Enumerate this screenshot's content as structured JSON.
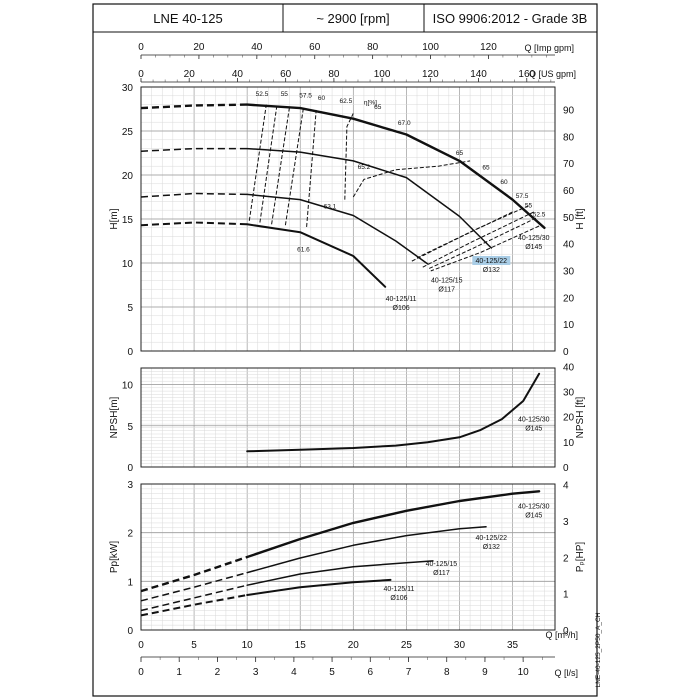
{
  "header": {
    "model": "LNE 40-125",
    "speed": "~ 2900 [rpm]",
    "standard": "ISO 9906:2012 - Grade 3B"
  },
  "footer_code": "LNE-40-125_2P50_A_CH",
  "colors": {
    "curve": "#111111",
    "grid_minor": "#d9d9d9",
    "grid_major": "#9a9a9a",
    "highlight": "#a9cde6"
  },
  "top_axes": {
    "imp": {
      "label": "Q [Imp gpm]",
      "ticks": [
        0,
        20,
        40,
        60,
        80,
        100,
        120
      ]
    },
    "us": {
      "label": "Q [US gpm]",
      "ticks": [
        0,
        20,
        40,
        60,
        80,
        100,
        120,
        140,
        160
      ]
    }
  },
  "bottom_axes": {
    "m3h": {
      "label": "Q [m³/h]",
      "ticks": [
        0,
        5,
        10,
        15,
        20,
        25,
        30,
        35
      ]
    },
    "ls": {
      "label": "Q [l/s]",
      "ticks": [
        0,
        1,
        2,
        3,
        4,
        5,
        6,
        7,
        8,
        9,
        10
      ]
    }
  },
  "chart_data": [
    {
      "type": "line",
      "panel": "head",
      "ylabel": "H[m]",
      "y2label": "H [ft]",
      "xlim": [
        0,
        39
      ],
      "ylim": [
        0,
        30
      ],
      "y_ticks": [
        0,
        5,
        10,
        15,
        20,
        25,
        30
      ],
      "y2_ticks": [
        0,
        10,
        20,
        30,
        40,
        50,
        60,
        70,
        80,
        90
      ],
      "grid": true,
      "series": [
        {
          "name": "40-125/30 Ø145",
          "width": 2.4,
          "points": [
            [
              0,
              27.6
            ],
            [
              5,
              27.9
            ],
            [
              10,
              28.0
            ],
            [
              15,
              27.6
            ],
            [
              20,
              26.4
            ],
            [
              25,
              24.6
            ],
            [
              30,
              21.6
            ],
            [
              35,
              17.2
            ],
            [
              38,
              14.0
            ]
          ],
          "dashed_until": 10
        },
        {
          "name": "40-125/22 Ø132",
          "width": 1.5,
          "points": [
            [
              0,
              22.7
            ],
            [
              5,
              23.0
            ],
            [
              10,
              23.0
            ],
            [
              15,
              22.6
            ],
            [
              20,
              21.6
            ],
            [
              25,
              19.7
            ],
            [
              30,
              15.3
            ],
            [
              33,
              11.7
            ]
          ],
          "dashed_until": 10
        },
        {
          "name": "40-125/15 Ø117",
          "width": 1.5,
          "points": [
            [
              0,
              17.5
            ],
            [
              5,
              17.9
            ],
            [
              10,
              17.8
            ],
            [
              15,
              17.2
            ],
            [
              20,
              15.4
            ],
            [
              24,
              12.5
            ],
            [
              27,
              9.9
            ]
          ],
          "dashed_until": 10
        },
        {
          "name": "40-125/11 Ø106",
          "width": 2.0,
          "points": [
            [
              0,
              14.3
            ],
            [
              5,
              14.6
            ],
            [
              10,
              14.4
            ],
            [
              15,
              13.5
            ],
            [
              20,
              10.8
            ],
            [
              23,
              7.3
            ]
          ],
          "dashed_until": 10
        }
      ],
      "efficiency_label": "η[%]",
      "efficiency": [
        {
          "label": "52.5",
          "points": [
            [
              10.2,
              14.8
            ],
            [
              11.8,
              28.0
            ]
          ],
          "label_at": [
            11.4,
            29.0
          ]
        },
        {
          "label": "55",
          "points": [
            [
              11.2,
              14.6
            ],
            [
              12.8,
              27.9
            ]
          ],
          "label_at": [
            13.5,
            29.0
          ]
        },
        {
          "label": "57.5",
          "points": [
            [
              12.3,
              14.4
            ],
            [
              14.0,
              27.8
            ]
          ],
          "label_at": [
            15.5,
            28.8
          ]
        },
        {
          "label": "60",
          "points": [
            [
              13.6,
              14.3
            ],
            [
              15.3,
              27.6
            ]
          ],
          "label_at": [
            17.0,
            28.5
          ]
        },
        {
          "label": "62.5",
          "points": [
            [
              15.6,
              14.1
            ],
            [
              16.5,
              27.4
            ]
          ],
          "label_at": [
            19.3,
            28.2
          ]
        },
        {
          "label": "65",
          "points": [
            [
              19.2,
              17.2
            ],
            [
              19.4,
              25.5
            ],
            [
              20.0,
              27.0
            ]
          ],
          "label_at": [
            22.3,
            27.5
          ]
        },
        {
          "label": "65",
          "points": [
            [
              20.0,
              17.5
            ],
            [
              21.0,
              19.5
            ],
            [
              24.0,
              20.6
            ],
            [
              28.0,
              21.0
            ],
            [
              31.0,
              21.6
            ]
          ],
          "label_at": null
        },
        {
          "label": "65",
          "points": [
            [
              35.0,
              15.8
            ],
            [
              30.0,
              12.9
            ],
            [
              25.5,
              10.2
            ]
          ],
          "label_at": null
        },
        {
          "label": "60",
          "points": [
            [
              36.5,
              16.5
            ],
            [
              31.5,
              13.8
            ],
            [
              26.0,
              10.6
            ]
          ],
          "label_at": null
        },
        {
          "label": "57.5",
          "points": [
            [
              37.0,
              15.8
            ],
            [
              31.0,
              12.3
            ],
            [
              26.5,
              9.5
            ]
          ],
          "label_at": null
        },
        {
          "label": "55",
          "points": [
            [
              37.2,
              15.1
            ],
            [
              31.5,
              11.8
            ],
            [
              27.0,
              9.3
            ]
          ],
          "label_at": null
        },
        {
          "label": "52.5",
          "points": [
            [
              37.5,
              14.2
            ],
            [
              32.0,
              11.2
            ],
            [
              27.3,
              9.1
            ]
          ],
          "label_at": null
        }
      ],
      "annotations": [
        {
          "text": "67.0",
          "at": [
            24.8,
            25.7
          ]
        },
        {
          "text": "65.2",
          "at": [
            21.0,
            20.7
          ]
        },
        {
          "text": "63.1",
          "at": [
            17.8,
            16.2
          ]
        },
        {
          "text": "61.6",
          "at": [
            15.3,
            11.3
          ]
        },
        {
          "text": "65",
          "at": [
            30.0,
            22.3
          ]
        },
        {
          "text": "65",
          "at": [
            32.5,
            20.6
          ]
        },
        {
          "text": "60",
          "at": [
            34.2,
            19.0
          ]
        },
        {
          "text": "57.5",
          "at": [
            35.9,
            17.4
          ]
        },
        {
          "text": "55",
          "at": [
            36.5,
            16.3
          ]
        },
        {
          "text": "52.5",
          "at": [
            37.5,
            15.3
          ]
        }
      ],
      "series_labels": [
        {
          "line1": "40-125/30",
          "line2": "Ø145",
          "at": [
            37.0,
            12.6
          ],
          "highlight": false
        },
        {
          "line1": "40-125/22",
          "line2": "Ø132",
          "at": [
            33.0,
            10.0
          ],
          "highlight": true
        },
        {
          "line1": "40-125/15",
          "line2": "Ø117",
          "at": [
            28.8,
            7.8
          ],
          "highlight": false
        },
        {
          "line1": "40-125/11",
          "line2": "Ø106",
          "at": [
            24.5,
            5.7
          ],
          "highlight": false
        }
      ]
    },
    {
      "type": "line",
      "panel": "npsh",
      "ylabel": "NPSH[m]",
      "y2label": "NPSH [ft]",
      "xlim": [
        0,
        39
      ],
      "ylim": [
        0,
        12
      ],
      "y_ticks": [
        0,
        5,
        10
      ],
      "y2_ticks": [
        0,
        10,
        20,
        30,
        40
      ],
      "grid": true,
      "series": [
        {
          "name": "40-125/30 Ø145",
          "width": 2.0,
          "points": [
            [
              10,
              1.9
            ],
            [
              15,
              2.1
            ],
            [
              20,
              2.3
            ],
            [
              24,
              2.6
            ],
            [
              27,
              3.0
            ],
            [
              30,
              3.6
            ],
            [
              32,
              4.5
            ],
            [
              34,
              5.8
            ],
            [
              36,
              8.0
            ],
            [
              37.5,
              11.3
            ]
          ]
        }
      ],
      "series_labels": [
        {
          "line1": "40-125/30",
          "line2": "Ø145",
          "at": [
            37.0,
            5.5
          ],
          "highlight": false
        }
      ]
    },
    {
      "type": "line",
      "panel": "power",
      "ylabel": "Pp[kW]",
      "y2label": "Pₚ[HP]",
      "xlim": [
        0,
        39
      ],
      "ylim": [
        0,
        3
      ],
      "y_ticks": [
        0,
        1,
        2,
        3
      ],
      "y2_ticks": [
        0,
        1,
        2,
        3,
        4
      ],
      "grid": true,
      "series": [
        {
          "name": "40-125/30 Ø145",
          "width": 2.4,
          "points": [
            [
              0,
              0.8
            ],
            [
              5,
              1.13
            ],
            [
              10,
              1.5
            ],
            [
              15,
              1.87
            ],
            [
              20,
              2.2
            ],
            [
              25,
              2.45
            ],
            [
              30,
              2.65
            ],
            [
              35,
              2.8
            ],
            [
              37.5,
              2.85
            ]
          ],
          "dashed_until": 10
        },
        {
          "name": "40-125/22 Ø132",
          "width": 1.5,
          "points": [
            [
              0,
              0.6
            ],
            [
              5,
              0.88
            ],
            [
              10,
              1.18
            ],
            [
              15,
              1.48
            ],
            [
              20,
              1.74
            ],
            [
              25,
              1.94
            ],
            [
              30,
              2.08
            ],
            [
              32.5,
              2.12
            ]
          ],
          "dashed_until": 10
        },
        {
          "name": "40-125/15 Ø117",
          "width": 1.5,
          "points": [
            [
              0,
              0.4
            ],
            [
              5,
              0.66
            ],
            [
              10,
              0.92
            ],
            [
              15,
              1.15
            ],
            [
              20,
              1.3
            ],
            [
              25,
              1.38
            ],
            [
              27.5,
              1.42
            ]
          ],
          "dashed_until": 10
        },
        {
          "name": "40-125/11 Ø106",
          "width": 2.0,
          "points": [
            [
              0,
              0.3
            ],
            [
              5,
              0.52
            ],
            [
              10,
              0.72
            ],
            [
              15,
              0.88
            ],
            [
              20,
              0.98
            ],
            [
              23.5,
              1.03
            ]
          ],
          "dashed_until": 10
        }
      ],
      "series_labels": [
        {
          "line1": "40-125/30",
          "line2": "Ø145",
          "at": [
            37.0,
            2.5
          ],
          "highlight": false
        },
        {
          "line1": "40-125/22",
          "line2": "Ø132",
          "at": [
            33.0,
            1.85
          ],
          "highlight": false
        },
        {
          "line1": "40-125/15",
          "line2": "Ø117",
          "at": [
            28.3,
            1.32
          ],
          "highlight": false
        },
        {
          "line1": "40-125/11",
          "line2": "Ø106",
          "at": [
            24.3,
            0.8
          ],
          "highlight": false
        }
      ]
    }
  ]
}
